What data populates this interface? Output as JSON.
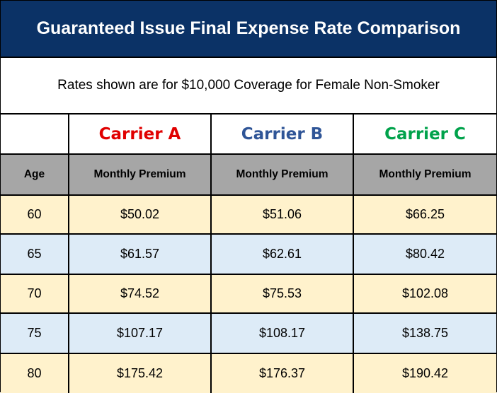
{
  "title": "Guaranteed Issue Final Expense Rate Comparison",
  "subtitle": "Rates shown are for $10,000 Coverage for Female Non-Smoker",
  "carriers": [
    {
      "label": "Carrier A",
      "color": "#e00000"
    },
    {
      "label": "Carrier B",
      "color": "#2f5597"
    },
    {
      "label": "Carrier C",
      "color": "#00a24b"
    }
  ],
  "columns": [
    "Age",
    "Monthly Premium",
    "Monthly Premium",
    "Monthly Premium"
  ],
  "rows": [
    [
      "60",
      "$50.02",
      "$51.06",
      "$66.25"
    ],
    [
      "65",
      "$61.57",
      "$62.61",
      "$80.42"
    ],
    [
      "70",
      "$74.52",
      "$75.53",
      "$102.08"
    ],
    [
      "75",
      "$107.17",
      "$108.17",
      "$138.75"
    ],
    [
      "80",
      "$175.42",
      "$176.37",
      "$190.42"
    ]
  ]
}
